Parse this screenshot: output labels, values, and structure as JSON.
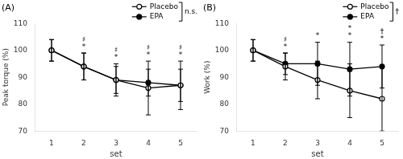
{
  "chart_data": [
    {
      "type": "line",
      "title": "(A)",
      "x_label": "set",
      "y_label": "Peak torque (%)",
      "x": [
        1,
        2,
        3,
        4,
        5
      ],
      "series": [
        {
          "name": "Placebo",
          "color": "#000000",
          "marker": "open_circle",
          "line_style": "solid",
          "values": [
            100,
            94,
            89,
            86,
            87
          ],
          "errors": [
            4,
            5,
            5,
            10,
            9
          ]
        },
        {
          "name": "EPA",
          "color": "#000000",
          "marker": "circle",
          "line_style": "solid",
          "values": [
            100,
            94,
            89,
            88,
            87
          ],
          "errors": [
            4,
            5,
            6,
            5,
            6
          ]
        }
      ],
      "annotations": [
        {
          "x": 2,
          "texts": [
            "♯",
            "*"
          ]
        },
        {
          "x": 3,
          "texts": [
            "♯",
            "*"
          ]
        },
        {
          "x": 4,
          "texts": [
            "♯",
            "*"
          ]
        },
        {
          "x": 5,
          "texts": [
            "♯",
            "*"
          ]
        }
      ],
      "bracket_label": "n.s.",
      "xlim": [
        0.5,
        5.5
      ],
      "xticks": [
        1,
        2,
        3,
        4,
        5
      ],
      "ylim": [
        70,
        110
      ],
      "yticks": [
        70,
        80,
        90,
        100,
        110
      ],
      "grid": false,
      "legend": "upper right"
    },
    {
      "type": "line",
      "title": "(B)",
      "x_label": "set",
      "y_label": "Work (%)",
      "x": [
        1,
        2,
        3,
        4,
        5
      ],
      "series": [
        {
          "name": "Placebo",
          "color": "#000000",
          "marker": "open_circle",
          "line_style": "solid",
          "values": [
            100,
            94,
            89,
            85,
            82
          ],
          "errors": [
            4,
            5,
            7,
            10,
            12
          ]
        },
        {
          "name": "EPA",
          "color": "#000000",
          "marker": "circle",
          "line_style": "solid",
          "values": [
            100,
            95,
            95,
            93,
            94
          ],
          "errors": [
            4,
            4,
            8,
            10,
            8
          ]
        }
      ],
      "annotations": [
        {
          "x": 2,
          "texts": [
            "♯",
            "*"
          ]
        },
        {
          "x": 3,
          "texts": [
            "*"
          ]
        },
        {
          "x": 4,
          "texts": [
            "*",
            "*"
          ]
        },
        {
          "x": 5,
          "texts": [
            "†",
            "*"
          ]
        }
      ],
      "bracket_label": "†",
      "xlim": [
        0.5,
        5.5
      ],
      "xticks": [
        1,
        2,
        3,
        4,
        5
      ],
      "ylim": [
        70,
        110
      ],
      "yticks": [
        70,
        80,
        90,
        100,
        110
      ],
      "grid": false,
      "legend": "upper right"
    }
  ]
}
